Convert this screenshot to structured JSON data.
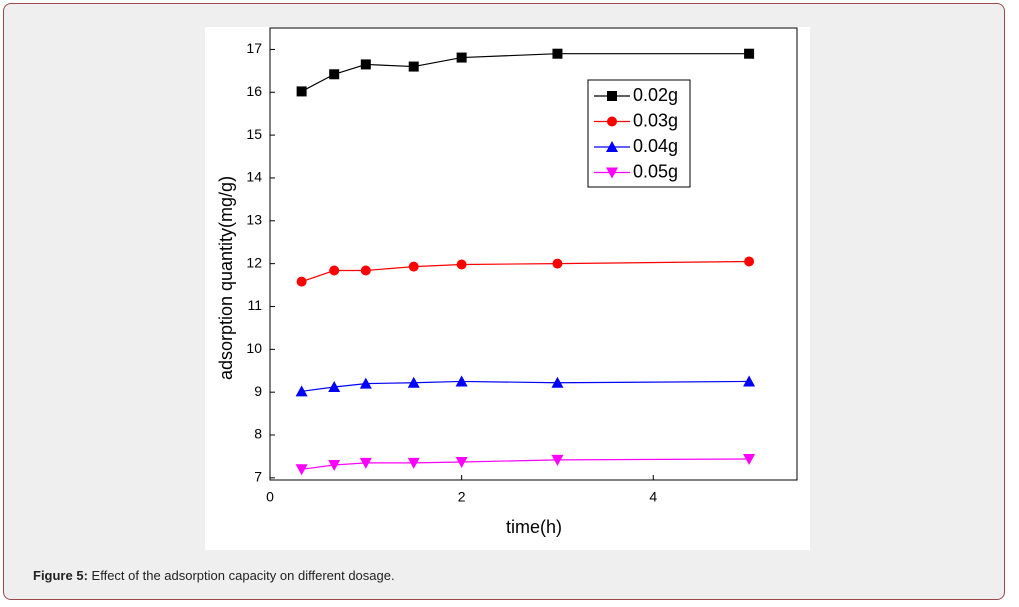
{
  "chart_data": {
    "type": "line",
    "x_label": "time(h)",
    "y_label": "adsorption quantity(mg/g)",
    "x": [
      0.33,
      0.67,
      1,
      1.5,
      2,
      3,
      5
    ],
    "series": [
      {
        "name": "0.02g",
        "color": "#000000",
        "marker": "square",
        "values": [
          16.02,
          16.42,
          16.65,
          16.6,
          16.81,
          16.9,
          16.9
        ]
      },
      {
        "name": "0.03g",
        "color": "#ff0000",
        "marker": "circle",
        "values": [
          11.58,
          11.84,
          11.84,
          11.93,
          11.98,
          12.0,
          12.05
        ]
      },
      {
        "name": "0.04g",
        "color": "#0000ff",
        "marker": "triangle-up",
        "values": [
          9.02,
          9.12,
          9.2,
          9.22,
          9.25,
          9.22,
          9.25
        ]
      },
      {
        "name": "0.05g",
        "color": "#ff00ff",
        "marker": "triangle-down",
        "values": [
          7.2,
          7.3,
          7.35,
          7.35,
          7.37,
          7.42,
          7.44
        ]
      }
    ],
    "xlim": [
      0,
      5.5
    ],
    "xticks": [
      0,
      2,
      4
    ],
    "ylim": [
      6.95,
      17.5
    ],
    "yticks": [
      7,
      8,
      9,
      10,
      11,
      12,
      13,
      14,
      15,
      16,
      17
    ],
    "legend": "upper-right",
    "grid": false
  },
  "caption": {
    "label": "Figure 5:",
    "text": "Effect of the adsorption capacity on different dosage."
  }
}
